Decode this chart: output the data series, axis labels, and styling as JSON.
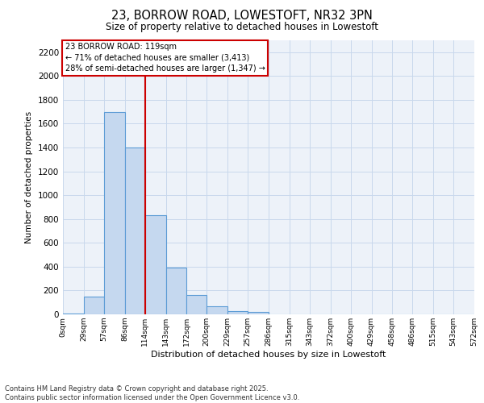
{
  "title_line1": "23, BORROW ROAD, LOWESTOFT, NR32 3PN",
  "title_line2": "Size of property relative to detached houses in Lowestoft",
  "xlabel": "Distribution of detached houses by size in Lowestoft",
  "ylabel": "Number of detached properties",
  "bar_values": [
    10,
    150,
    1700,
    1400,
    830,
    390,
    165,
    70,
    30,
    20,
    0,
    0,
    0,
    0,
    0,
    0,
    0,
    0,
    0,
    0
  ],
  "categories": [
    "0sqm",
    "29sqm",
    "57sqm",
    "86sqm",
    "114sqm",
    "143sqm",
    "172sqm",
    "200sqm",
    "229sqm",
    "257sqm",
    "286sqm",
    "315sqm",
    "343sqm",
    "372sqm",
    "400sqm",
    "429sqm",
    "458sqm",
    "486sqm",
    "515sqm",
    "543sqm",
    "572sqm"
  ],
  "bar_color": "#c5d8ef",
  "bar_edge_color": "#5b9bd5",
  "vline_color": "#cc0000",
  "annotation_text": "23 BORROW ROAD: 119sqm\n← 71% of detached houses are smaller (3,413)\n28% of semi-detached houses are larger (1,347) →",
  "annotation_box_color": "#cc0000",
  "ylim": [
    0,
    2300
  ],
  "yticks": [
    0,
    200,
    400,
    600,
    800,
    1000,
    1200,
    1400,
    1600,
    1800,
    2000,
    2200
  ],
  "footer_line1": "Contains HM Land Registry data © Crown copyright and database right 2025.",
  "footer_line2": "Contains public sector information licensed under the Open Government Licence v3.0.",
  "grid_color": "#c8d8ec",
  "bg_color": "#edf2f9",
  "x_ticks": [
    0,
    29,
    57,
    86,
    114,
    143,
    172,
    200,
    229,
    257,
    286,
    315,
    343,
    372,
    400,
    429,
    458,
    486,
    515,
    543,
    572
  ]
}
